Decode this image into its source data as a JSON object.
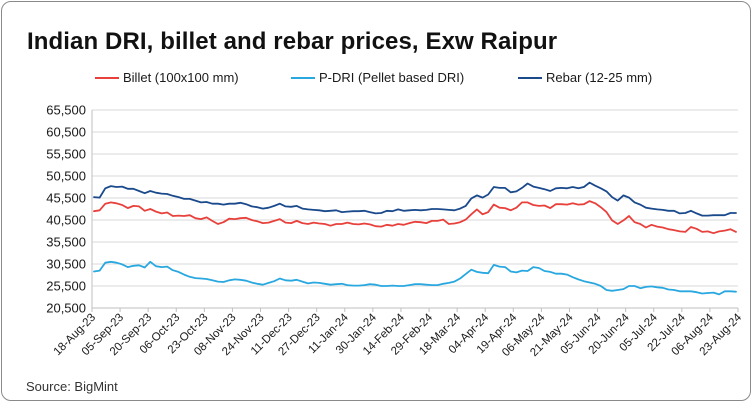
{
  "title": "Indian DRI, billet and rebar prices, Exw Raipur",
  "source": "Source: BigMint",
  "legend": [
    {
      "label": "Billet (100x100 mm)",
      "color": "#e8413c"
    },
    {
      "label": "P-DRI (Pellet based DRI)",
      "color": "#29a8e0"
    },
    {
      "label": "Rebar (12-25 mm)",
      "color": "#1a4a8c"
    }
  ],
  "chart_data": {
    "type": "line",
    "title": "Indian DRI, billet and rebar prices, Exw Raipur",
    "xlabel": "",
    "ylabel": "",
    "ylim": [
      20500,
      65500
    ],
    "yticks": [
      "65,500",
      "60,500",
      "55,500",
      "50,500",
      "45,500",
      "40,500",
      "35,500",
      "30,500",
      "25,500",
      "20,500"
    ],
    "ytick_values": [
      65500,
      60500,
      55500,
      50500,
      45500,
      40500,
      35500,
      30500,
      25500,
      20500
    ],
    "xticks": [
      "18-Aug-23",
      "05-Sep-23",
      "20-Sep-23",
      "06-Oct-23",
      "23-Oct-23",
      "08-Nov-23",
      "24-Nov-23",
      "11-Dec-23",
      "27-Dec-23",
      "11-Jan-24",
      "30-Jan-24",
      "14-Feb-24",
      "29-Feb-24",
      "18-Mar-24",
      "04-Apr-24",
      "19-Apr-24",
      "06-May-24",
      "21-May-24",
      "05-Jun-24",
      "20-Jun-24",
      "05-Jul-24",
      "22-Jul-24",
      "06-Aug-24",
      "23-Aug-24"
    ],
    "grid": true,
    "series": [
      {
        "name": "Billet (100x100 mm)",
        "color": "#e8413c",
        "values": [
          42500,
          42700,
          44200,
          44500,
          44300,
          43900,
          43200,
          43700,
          43600,
          42600,
          43000,
          42400,
          42000,
          42200,
          41400,
          41500,
          41400,
          41600,
          40900,
          40700,
          41100,
          40300,
          39600,
          40000,
          40800,
          40700,
          40900,
          41000,
          40500,
          40200,
          39800,
          39900,
          40300,
          40700,
          39900,
          39800,
          40300,
          39800,
          39600,
          39900,
          39700,
          39600,
          39200,
          39600,
          39600,
          39900,
          39600,
          39500,
          39700,
          39500,
          39100,
          39000,
          39400,
          39200,
          39600,
          39400,
          39800,
          40100,
          40000,
          39800,
          40300,
          40300,
          40600,
          39600,
          39700,
          40000,
          40600,
          41800,
          42900,
          41800,
          42300,
          44000,
          43300,
          43200,
          42700,
          43300,
          44500,
          44500,
          43900,
          43700,
          43800,
          43200,
          44100,
          44100,
          44000,
          44300,
          44000,
          44100,
          44800,
          44300,
          43400,
          42300,
          40400,
          39600,
          40400,
          41400,
          40000,
          39600,
          38800,
          39400,
          39000,
          38800,
          38400,
          38200,
          37900,
          37800,
          38900,
          38500,
          37800,
          37900,
          37500,
          37900,
          38100,
          38400,
          37800
        ]
      },
      {
        "name": "P-DRI (Pellet based DRI)",
        "color": "#29a8e0",
        "values": [
          28800,
          29000,
          30800,
          31000,
          30800,
          30400,
          29800,
          30100,
          30200,
          29700,
          31000,
          30000,
          29800,
          29900,
          29100,
          28700,
          28100,
          27600,
          27300,
          27200,
          27100,
          26800,
          26500,
          26400,
          26800,
          27000,
          26900,
          26700,
          26300,
          26000,
          25800,
          26200,
          26600,
          27200,
          26800,
          26700,
          26900,
          26500,
          26100,
          26300,
          26200,
          26000,
          25800,
          25900,
          26000,
          25700,
          25600,
          25600,
          25700,
          25900,
          25800,
          25500,
          25500,
          25600,
          25500,
          25500,
          25700,
          25900,
          25900,
          25800,
          25700,
          25700,
          26000,
          26200,
          26500,
          27200,
          28200,
          29200,
          28700,
          28500,
          28400,
          30300,
          29900,
          29800,
          28800,
          28600,
          29000,
          28900,
          29800,
          29600,
          28900,
          28700,
          28300,
          28300,
          28100,
          27500,
          27000,
          26600,
          26300,
          26000,
          25500,
          24600,
          24400,
          24600,
          24800,
          25500,
          25500,
          25000,
          25300,
          25400,
          25200,
          25100,
          24700,
          24600,
          24300,
          24300,
          24300,
          24100,
          23800,
          23900,
          24000,
          23600,
          24300,
          24300,
          24200
        ]
      },
      {
        "name": "Rebar (12-25 mm)",
        "color": "#1a4a8c",
        "values": [
          45700,
          45600,
          47700,
          48200,
          48000,
          48100,
          47600,
          47600,
          47100,
          46600,
          47100,
          46700,
          46500,
          46400,
          46000,
          45700,
          45300,
          45300,
          44900,
          44500,
          44600,
          44200,
          44200,
          44000,
          44200,
          44200,
          44400,
          44100,
          43600,
          43400,
          43100,
          43300,
          43700,
          44200,
          43600,
          43500,
          43700,
          43100,
          42900,
          42800,
          42700,
          42500,
          42600,
          42700,
          42300,
          42400,
          42500,
          42500,
          42600,
          42300,
          42000,
          42100,
          42600,
          42500,
          42900,
          42600,
          42700,
          42800,
          42700,
          42800,
          43000,
          43000,
          42900,
          42800,
          42700,
          43100,
          43700,
          45400,
          46100,
          45600,
          46300,
          48000,
          47800,
          47800,
          46800,
          47000,
          47800,
          48800,
          48100,
          47800,
          47500,
          47100,
          47700,
          47800,
          47700,
          48000,
          47700,
          48000,
          49000,
          48300,
          47700,
          47000,
          45700,
          44900,
          46100,
          45600,
          44500,
          44000,
          43300,
          43100,
          42900,
          42800,
          42600,
          42600,
          42000,
          42100,
          42600,
          42000,
          41500,
          41500,
          41600,
          41600,
          41600,
          42100,
          42100
        ]
      }
    ]
  }
}
